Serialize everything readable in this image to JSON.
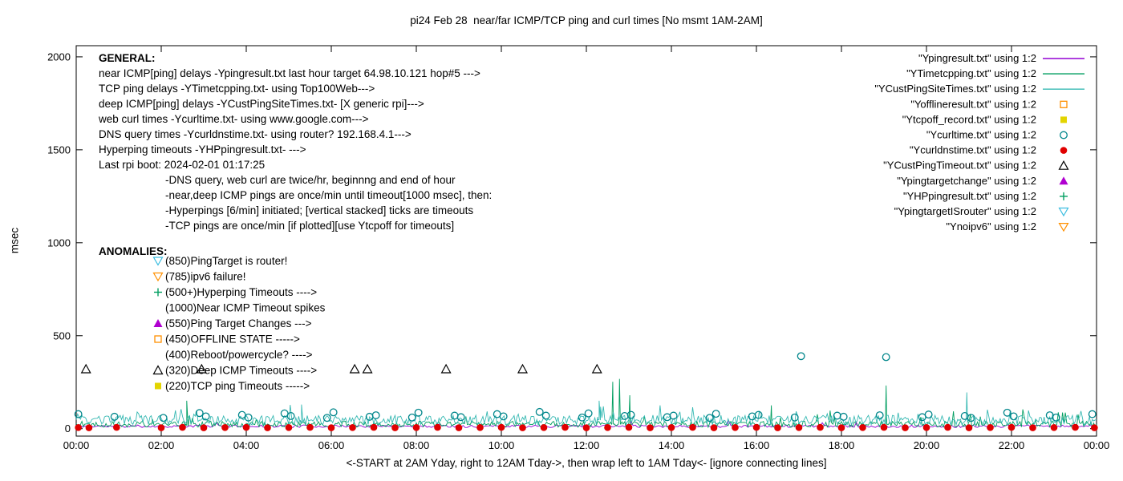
{
  "chart_data": {
    "type": "line+scatter",
    "title": "pi24 Feb 28  near/far ICMP/TCP ping and curl times [No msmt 1AM-2AM]",
    "xlabel": "<-START at 2AM Yday, right to 12AM Tday->, then wrap left to 1AM Tday<- [ignore connecting lines]",
    "ylabel": "msec",
    "x_ticks": [
      "00:00",
      "02:00",
      "04:00",
      "06:00",
      "08:00",
      "10:00",
      "12:00",
      "14:00",
      "16:00",
      "18:00",
      "20:00",
      "22:00",
      "00:00"
    ],
    "y_ticks": [
      0,
      500,
      1000,
      1500,
      2000
    ],
    "xlim_hours": [
      0,
      24
    ],
    "ylim": [
      0,
      2000
    ],
    "grid": false,
    "legend_position": "top-right",
    "series": [
      {
        "name": "Ypingresult.txt",
        "legend_label": "\"Ypingresult.txt\" using 1:2",
        "color": "#9400d3",
        "style": "line",
        "noise": {
          "seed": 11,
          "points": 480,
          "base": 13,
          "amp": 7,
          "spike_prob": 0.008,
          "spike_amp": 35
        },
        "spikes": []
      },
      {
        "name": "YTimetcpping.txt",
        "legend_label": "\"YTimetcpping.txt\" using 1:2",
        "color": "#009e60",
        "style": "line",
        "noise": {
          "seed": 22,
          "points": 720,
          "base": 24,
          "amp": 16,
          "spike_prob": 0.035,
          "spike_amp": 70
        },
        "spikes": [
          [
            2.6,
            150
          ],
          [
            12.62,
            252
          ],
          [
            12.78,
            268
          ],
          [
            13.02,
            180
          ],
          [
            16.35,
            125
          ],
          [
            19.05,
            232
          ]
        ]
      },
      {
        "name": "YCustPingSiteTimes.txt",
        "legend_label": "\"YCustPingSiteTimes.txt\" using 1:2",
        "color": "#35b8b2",
        "style": "line",
        "noise": {
          "seed": 33,
          "points": 720,
          "base": 46,
          "amp": 26,
          "spike_prob": 0.05,
          "spike_amp": 60
        },
        "spikes": [
          [
            5.3,
            130
          ],
          [
            12.3,
            150
          ],
          [
            20.95,
            195
          ]
        ]
      },
      {
        "name": "Yofflineresult.txt",
        "legend_label": "\"Yofflineresult.txt\" using 1:2",
        "color": "#ff9000",
        "style": "points",
        "marker": "square-open",
        "points": []
      },
      {
        "name": "Ytcpoff_record.txt",
        "legend_label": "\"Ytcpoff_record.txt\" using 1:2",
        "color": "#e3d400",
        "style": "points",
        "marker": "square-filled",
        "points": []
      },
      {
        "name": "Ycurltime.txt",
        "legend_label": "\"Ycurltime.txt\" using 1:2",
        "color": "#00868b",
        "style": "points",
        "marker": "circle-open",
        "points": [
          [
            0.05,
            78
          ],
          [
            0.9,
            64
          ],
          [
            2.05,
            58
          ],
          [
            2.9,
            84
          ],
          [
            3.05,
            66
          ],
          [
            3.9,
            74
          ],
          [
            4.05,
            60
          ],
          [
            4.9,
            82
          ],
          [
            5.05,
            68
          ],
          [
            5.9,
            58
          ],
          [
            6.05,
            88
          ],
          [
            6.9,
            64
          ],
          [
            7.05,
            72
          ],
          [
            7.9,
            60
          ],
          [
            8.05,
            86
          ],
          [
            8.9,
            70
          ],
          [
            9.05,
            62
          ],
          [
            9.9,
            78
          ],
          [
            10.05,
            66
          ],
          [
            10.9,
            90
          ],
          [
            11.05,
            70
          ],
          [
            11.9,
            60
          ],
          [
            12.05,
            82
          ],
          [
            12.9,
            68
          ],
          [
            13.05,
            74
          ],
          [
            13.9,
            62
          ],
          [
            14.05,
            70
          ],
          [
            14.9,
            58
          ],
          [
            15.05,
            80
          ],
          [
            15.9,
            66
          ],
          [
            16.05,
            74
          ],
          [
            16.9,
            60
          ],
          [
            17.05,
            390
          ],
          [
            17.9,
            70
          ],
          [
            18.05,
            64
          ],
          [
            18.9,
            72
          ],
          [
            19.05,
            385
          ],
          [
            19.9,
            62
          ],
          [
            20.05,
            76
          ],
          [
            20.9,
            68
          ],
          [
            21.05,
            58
          ],
          [
            21.9,
            86
          ],
          [
            22.05,
            66
          ],
          [
            22.9,
            72
          ],
          [
            23.05,
            60
          ],
          [
            23.9,
            78
          ]
        ]
      },
      {
        "name": "Ycurldnstime.txt",
        "legend_label": "\"Ycurldnstime.txt\" using 1:2",
        "color": "#e00000",
        "style": "points",
        "marker": "circle-filled",
        "points": [
          [
            0.05,
            6
          ],
          [
            0.3,
            5
          ],
          [
            0.95,
            7
          ],
          [
            2.0,
            5
          ],
          [
            2.5,
            7
          ],
          [
            3.0,
            5
          ],
          [
            3.5,
            6
          ],
          [
            4.0,
            7
          ],
          [
            4.5,
            5
          ],
          [
            5.0,
            6
          ],
          [
            5.5,
            7
          ],
          [
            6.0,
            5
          ],
          [
            6.5,
            6
          ],
          [
            7.0,
            7
          ],
          [
            7.5,
            5
          ],
          [
            8.0,
            6
          ],
          [
            8.5,
            7
          ],
          [
            9.0,
            5
          ],
          [
            9.5,
            6
          ],
          [
            10.0,
            7
          ],
          [
            10.5,
            5
          ],
          [
            11.0,
            6
          ],
          [
            11.5,
            7
          ],
          [
            12.0,
            5
          ],
          [
            12.5,
            6
          ],
          [
            13.0,
            7
          ],
          [
            13.5,
            5
          ],
          [
            14.0,
            6
          ],
          [
            14.5,
            7
          ],
          [
            15.0,
            5
          ],
          [
            15.5,
            6
          ],
          [
            16.0,
            7
          ],
          [
            16.5,
            5
          ],
          [
            17.0,
            6
          ],
          [
            17.5,
            7
          ],
          [
            18.0,
            5
          ],
          [
            18.5,
            6
          ],
          [
            19.0,
            7
          ],
          [
            19.5,
            5
          ],
          [
            20.0,
            6
          ],
          [
            20.5,
            7
          ],
          [
            21.0,
            5
          ],
          [
            21.5,
            6
          ],
          [
            22.0,
            7
          ],
          [
            22.5,
            5
          ],
          [
            23.0,
            6
          ],
          [
            23.5,
            7
          ],
          [
            23.95,
            5
          ]
        ]
      },
      {
        "name": "YCustPingTimeout.txt",
        "legend_label": "\"YCustPingTimeout.txt\" using 1:2",
        "color": "#000000",
        "style": "points",
        "marker": "triangle-open",
        "points": [
          [
            0.23,
            320
          ],
          [
            2.95,
            320
          ],
          [
            6.55,
            320
          ],
          [
            6.85,
            320
          ],
          [
            8.7,
            320
          ],
          [
            10.5,
            320
          ],
          [
            12.25,
            320
          ]
        ]
      },
      {
        "name": "Ypingtargetchange",
        "legend_label": "\"Ypingtargetchange\" using 1:2",
        "color": "#b000d0",
        "style": "points",
        "marker": "triangle-filled",
        "points": []
      },
      {
        "name": "YHPpingresult.txt",
        "legend_label": "\"YHPpingresult.txt\" using 1:2",
        "color": "#009e60",
        "style": "points",
        "marker": "plus",
        "points": []
      },
      {
        "name": "YpingtargetISrouter",
        "legend_label": "\"YpingtargetISrouter\" using 1:2",
        "color": "#3bbde0",
        "style": "points",
        "marker": "triangle-down-open",
        "points": []
      },
      {
        "name": "Ynoipv6",
        "legend_label": "\"Ynoipv6\" using 1:2",
        "color": "#ff9000",
        "style": "points",
        "marker": "triangle-down-open",
        "points": []
      }
    ]
  },
  "annotations": {
    "general_header": "GENERAL:",
    "general_lines": [
      "near ICMP[ping] delays -Ypingresult.txt last hour target 64.98.10.121 hop#5 --->",
      "TCP ping delays -YTimetcpping.txt- using Top100Web--->",
      "deep ICMP[ping] delays -YCustPingSiteTimes.txt- [X generic rpi]--->",
      "web curl times -Ycurltime.txt- using www.google.com--->",
      "DNS query times -Ycurldnstime.txt- using router? 192.168.4.1--->",
      "Hyperping timeouts -YHPpingresult.txt- --->",
      "Last rpi boot: 2024-02-01 01:17:25"
    ],
    "general_notes": [
      "-DNS query, web curl are twice/hr, beginnng and end of hour",
      "-near,deep ICMP pings are once/min until timeout[1000 msec], then:",
      "-Hyperpings [6/min] initiated; [vertical stacked] ticks are timeouts",
      "-TCP pings are once/min [if plotted][use Ytcpoff for timeouts]"
    ],
    "anomalies_header": "ANOMALIES:",
    "anomalies": [
      {
        "icon": "triangle-down-open",
        "color": "#3bbde0",
        "text": "(850)PingTarget is router!"
      },
      {
        "icon": "triangle-down-open",
        "color": "#ff9000",
        "text": "(785)ipv6 failure!"
      },
      {
        "icon": "plus",
        "color": "#009e60",
        "text": "(500+)Hyperping Timeouts ---->"
      },
      {
        "icon": null,
        "color": null,
        "text": "(1000)Near ICMP Timeout spikes"
      },
      {
        "icon": "triangle-filled",
        "color": "#b000d0",
        "text": "(550)Ping Target Changes --->"
      },
      {
        "icon": "square-open",
        "color": "#ff9000",
        "text": "(450)OFFLINE STATE ----->"
      },
      {
        "icon": null,
        "color": null,
        "text": "(400)Reboot/powercycle? ---->"
      },
      {
        "icon": "triangle-open",
        "color": "#000000",
        "text": "(320)Deep ICMP Timeouts ---->"
      },
      {
        "icon": "square-filled",
        "color": "#e3d400",
        "text": "(220)TCP ping Timeouts ----->"
      }
    ]
  }
}
